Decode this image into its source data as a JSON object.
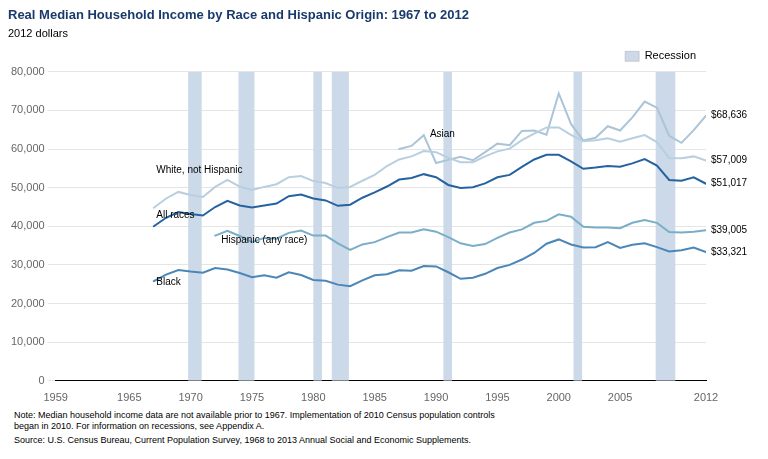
{
  "chart_data": {
    "type": "line",
    "title": "Real Median Household Income by Race and Hispanic Origin: 1967 to 2012",
    "ylabel": "2012 dollars",
    "xlim": [
      1959,
      2012
    ],
    "ylim": [
      0,
      80000
    ],
    "xticks": [
      1959,
      1965,
      1970,
      1975,
      1980,
      1985,
      1990,
      1995,
      2000,
      2005,
      2012
    ],
    "yticks": [
      0,
      {
        "value": 10000,
        "label": "10,000"
      },
      {
        "value": 20000,
        "label": "20,000"
      },
      {
        "value": 30000,
        "label": "30,000"
      },
      {
        "value": 40000,
        "label": "40,000"
      },
      {
        "value": 50000,
        "label": "50,000"
      },
      {
        "value": 60000,
        "label": "60,000"
      },
      {
        "value": 70000,
        "label": "70,000"
      },
      {
        "value": 80000,
        "label": "80,000"
      }
    ],
    "grid": "y",
    "legend": "upper right",
    "shaded_periods": {
      "name": "Recession",
      "color": "#ccd9e8",
      "ranges": [
        [
          1969.8,
          1970.9
        ],
        [
          1973.9,
          1975.2
        ],
        [
          1980.0,
          1980.7
        ],
        [
          1981.5,
          1982.9
        ],
        [
          1990.6,
          1991.3
        ],
        [
          2001.2,
          2001.9
        ],
        [
          2007.9,
          2009.5
        ]
      ]
    },
    "series": [
      {
        "color": "#b8cfe0",
        "x": [
          1967,
          1968,
          1969,
          1970,
          1971,
          1972,
          1973,
          1974,
          1975,
          1976,
          1977,
          1978,
          1979,
          1980,
          1981,
          1982,
          1983,
          1984,
          1985,
          1986,
          1987,
          1988,
          1989,
          1990,
          1991,
          1992,
          1993,
          1994,
          1995,
          1996,
          1997,
          1998,
          1999,
          2000,
          2001,
          2002,
          2003,
          2004,
          2005,
          2006,
          2007,
          2008,
          2009,
          2010,
          2011,
          2012
        ],
        "values": [
          44800,
          47200,
          48900,
          48100,
          47600,
          50200,
          52000,
          50300,
          49400,
          50200,
          50900,
          52700,
          53000,
          51700,
          51200,
          49900,
          50200,
          51800,
          53300,
          55600,
          57300,
          58100,
          59500,
          59200,
          57700,
          56600,
          56600,
          58100,
          59400,
          60100,
          62300,
          64000,
          65600,
          65600,
          63700,
          62000,
          62300,
          62800,
          61900,
          62800,
          63600,
          61800,
          57700,
          57600,
          58100,
          57009
        ]
      },
      {
        "color": "#aac4d8",
        "x": [
          1987,
          1988,
          1989,
          1990,
          1991,
          1992,
          1993,
          1994,
          1995,
          1996,
          1997,
          1998,
          1999,
          2000,
          2001,
          2002,
          2003,
          2004,
          2005,
          2006,
          2007,
          2008,
          2009,
          2010,
          2011,
          2012
        ],
        "values": [
          60000,
          60800,
          63600,
          56400,
          57200,
          58000,
          57100,
          59200,
          61400,
          61000,
          64700,
          64800,
          63700,
          74400,
          66500,
          62200,
          62900,
          65900,
          64800,
          68200,
          72300,
          70700,
          63400,
          61600,
          64900,
          68636
        ]
      },
      {
        "color": "#2563a0",
        "x": [
          1967,
          1968,
          1969,
          1970,
          1971,
          1972,
          1973,
          1974,
          1975,
          1976,
          1977,
          1978,
          1979,
          1980,
          1981,
          1982,
          1983,
          1984,
          1985,
          1986,
          1987,
          1988,
          1989,
          1990,
          1991,
          1992,
          1993,
          1994,
          1995,
          1996,
          1997,
          1998,
          1999,
          2000,
          2001,
          2002,
          2003,
          2004,
          2005,
          2006,
          2007,
          2008,
          2009,
          2010,
          2011,
          2012
        ],
        "values": [
          40000,
          42200,
          43700,
          43200,
          42800,
          45000,
          46600,
          45400,
          44900,
          45400,
          45900,
          47800,
          48200,
          47200,
          46700,
          45300,
          45600,
          47400,
          48800,
          50300,
          52100,
          52500,
          53500,
          52700,
          50700,
          49900,
          50100,
          51100,
          52700,
          53300,
          55400,
          57300,
          58500,
          58500,
          56800,
          54900,
          55200,
          55600,
          55400,
          56300,
          57400,
          55700,
          52000,
          51800,
          52700,
          51017
        ]
      },
      {
        "color": "#7aaec8",
        "x": [
          1972,
          1973,
          1974,
          1975,
          1976,
          1977,
          1978,
          1979,
          1980,
          1981,
          1982,
          1983,
          1984,
          1985,
          1986,
          1987,
          1988,
          1989,
          1990,
          1991,
          1992,
          1993,
          1994,
          1995,
          1996,
          1997,
          1998,
          1999,
          2000,
          2001,
          2002,
          2003,
          2004,
          2005,
          2006,
          2007,
          2008,
          2009,
          2010,
          2011,
          2012
        ],
        "values": [
          37600,
          38800,
          37500,
          35900,
          37000,
          36800,
          38300,
          38900,
          37600,
          37600,
          35600,
          33900,
          35300,
          35900,
          37200,
          38400,
          38400,
          39200,
          38600,
          37200,
          35600,
          34900,
          35400,
          37000,
          38400,
          39200,
          40900,
          41400,
          43100,
          42500,
          39900,
          39700,
          39700,
          39500,
          40900,
          41600,
          40900,
          38500,
          38400,
          38600,
          39005
        ]
      },
      {
        "color": "#4a86b8",
        "x": [
          1967,
          1968,
          1969,
          1970,
          1971,
          1972,
          1973,
          1974,
          1975,
          1976,
          1977,
          1978,
          1979,
          1980,
          1981,
          1982,
          1983,
          1984,
          1985,
          1986,
          1987,
          1988,
          1989,
          1990,
          1991,
          1992,
          1993,
          1994,
          1995,
          1996,
          1997,
          1998,
          1999,
          2000,
          2001,
          2002,
          2003,
          2004,
          2005,
          2006,
          2007,
          2008,
          2009,
          2010,
          2011,
          2012
        ],
        "values": [
          25800,
          27500,
          28700,
          28300,
          28000,
          29200,
          28800,
          27900,
          26800,
          27300,
          26700,
          28100,
          27400,
          26100,
          25900,
          24900,
          24500,
          26000,
          27300,
          27600,
          28600,
          28500,
          29700,
          29600,
          28100,
          26400,
          26700,
          27700,
          29200,
          30000,
          31400,
          33100,
          35500,
          36600,
          35300,
          34500,
          34600,
          35900,
          34400,
          35200,
          35600,
          34600,
          33500,
          33800,
          34500,
          33321
        ]
      }
    ],
    "end_labels": [
      {
        "text": "$68,636",
        "x": 2012,
        "y": 68636
      },
      {
        "text": "$57,009",
        "x": 2012,
        "y": 57009
      },
      {
        "text": "$51,017",
        "x": 2012,
        "y": 51017
      },
      {
        "text": "$39,005",
        "x": 2012,
        "y": 39005
      },
      {
        "text": "$33,321",
        "x": 2012,
        "y": 33321
      }
    ],
    "annotations": [
      {
        "text": "Asian",
        "x": 1989.5,
        "y": 62500
      },
      {
        "text": "White, not Hispanic",
        "x": 1967.2,
        "y": 53200
      },
      {
        "text": "All races",
        "x": 1967.2,
        "y": 41600
      },
      {
        "text": "Hispanic (any race)",
        "x": 1972.5,
        "y": 35000
      },
      {
        "text": "Black",
        "x": 1967.2,
        "y": 24200
      }
    ],
    "note": "Note: Median household income data are not available prior to 1967. Implementation of 2010 Census population controls\nbegan in 2010. For information on recessions, see Appendix A.",
    "source": "Source: U.S. Census Bureau, Current Population Survey, 1968 to 2013 Annual Social and Economic Supplements."
  }
}
